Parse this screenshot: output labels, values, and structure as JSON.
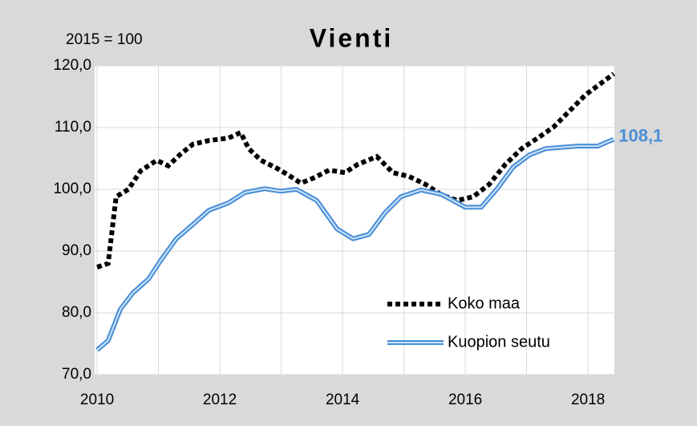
{
  "chart_data": {
    "type": "line",
    "title": "Vienti",
    "subtitle": "2015 = 100",
    "xlim": [
      2009.96,
      2018.43
    ],
    "xticks": [
      2010,
      2012,
      2014,
      2016,
      2018
    ],
    "xminor": [
      2011,
      2013,
      2015,
      2017
    ],
    "ylim": [
      70,
      120
    ],
    "yticks": [
      {
        "value": 70,
        "label": "70,0"
      },
      {
        "value": 80,
        "label": "80,0"
      },
      {
        "value": 90,
        "label": "90,0"
      },
      {
        "value": 100,
        "label": "100,0"
      },
      {
        "value": 110,
        "label": "110,0"
      },
      {
        "value": 120,
        "label": "120,0"
      }
    ],
    "grid": true,
    "legend": "lower right",
    "series": [
      {
        "name": "Koko maa",
        "color": "#000000",
        "style": "dotted",
        "x": [
          2010.0,
          2010.18,
          2010.31,
          2010.51,
          2010.71,
          2010.97,
          2011.16,
          2011.36,
          2011.56,
          2011.82,
          2012.14,
          2012.34,
          2012.47,
          2012.67,
          2012.93,
          2013.12,
          2013.32,
          2013.52,
          2013.78,
          2014.04,
          2014.24,
          2014.56,
          2014.82,
          2015.08,
          2015.35,
          2015.61,
          2015.87,
          2016.13,
          2016.39,
          2016.65,
          2016.92,
          2017.18,
          2017.44,
          2017.7,
          2017.96,
          2018.42
        ],
        "values": [
          87.4,
          88,
          98.8,
          100,
          103,
          104.7,
          103.8,
          105.7,
          107.3,
          107.9,
          108.3,
          109.2,
          106.6,
          104.7,
          103.4,
          102.3,
          101,
          101.8,
          103.1,
          102.7,
          104,
          105.3,
          102.7,
          102.1,
          100.8,
          99.1,
          98.2,
          98.8,
          100.8,
          104,
          106.6,
          108.3,
          110.1,
          112.7,
          115.3,
          118.7
        ]
      },
      {
        "name": "Kuopion seutu",
        "color": "#4a8fd8",
        "style": "double",
        "x": [
          2010.0,
          2010.18,
          2010.38,
          2010.58,
          2010.84,
          2011.03,
          2011.29,
          2011.56,
          2011.82,
          2012.14,
          2012.41,
          2012.73,
          2012.99,
          2013.25,
          2013.58,
          2013.91,
          2014.17,
          2014.43,
          2014.69,
          2014.95,
          2015.28,
          2015.61,
          2016.0,
          2016.26,
          2016.52,
          2016.78,
          2017.05,
          2017.31,
          2017.57,
          2017.83,
          2018.16,
          2018.42
        ],
        "values": [
          74,
          75.5,
          80.6,
          83.2,
          85.5,
          88.4,
          92,
          94.3,
          96.6,
          97.8,
          99.5,
          100.1,
          99.7,
          100,
          98.2,
          93.6,
          92,
          92.7,
          96.2,
          98.8,
          99.9,
          99.2,
          97.1,
          97.1,
          100.1,
          103.6,
          105.6,
          106.6,
          106.8,
          107,
          107,
          108.1
        ],
        "end_label": "108,1"
      }
    ]
  }
}
